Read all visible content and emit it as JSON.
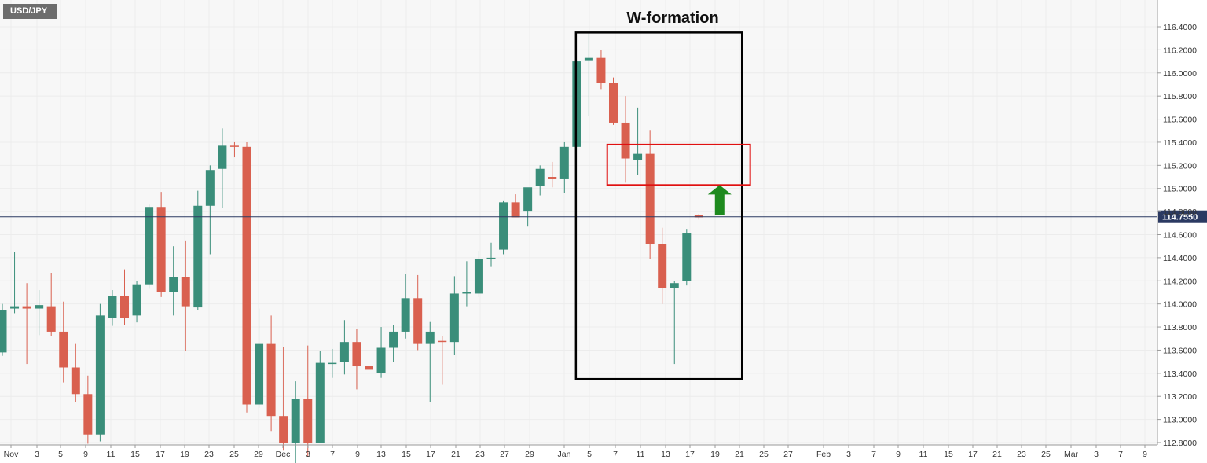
{
  "symbol": "USD/JPY",
  "colors": {
    "background": "#ffffff",
    "grid": "#ececec",
    "up": "#3a8e7a",
    "down": "#d9604f",
    "current_price_line": "#2b3a62",
    "price_tag": "#2b3a62",
    "axis_text": "#333333",
    "pattern_box": "#000000",
    "resistance_box": "#e01010",
    "arrow": "#1e8a1e"
  },
  "chart_data": {
    "type": "candlestick",
    "title": "",
    "ylim": [
      112.8,
      116.5
    ],
    "y_ticks": [
      "116.4000",
      "116.2000",
      "116.0000",
      "115.8000",
      "115.6000",
      "115.4000",
      "115.2000",
      "115.0000",
      "114.8000",
      "114.6000",
      "114.4000",
      "114.2000",
      "114.0000",
      "113.8000",
      "113.6000",
      "113.4000",
      "113.2000",
      "113.0000",
      "112.8000"
    ],
    "x_ticks": [
      "Nov",
      "3",
      "5",
      "9",
      "11",
      "15",
      "17",
      "19",
      "23",
      "25",
      "29",
      "Dec",
      "3",
      "7",
      "9",
      "13",
      "15",
      "17",
      "21",
      "23",
      "27",
      "29",
      "Jan",
      "5",
      "7",
      "11",
      "13",
      "17",
      "19",
      "21",
      "25",
      "27",
      "Feb",
      "3",
      "7",
      "9",
      "11",
      "15",
      "17",
      "21",
      "23",
      "25",
      "Mar",
      "3",
      "7",
      "9"
    ],
    "current_price": 114.755,
    "current_price_label": "114.7550",
    "candles": [
      {
        "o": 113.58,
        "h": 114.0,
        "l": 113.55,
        "c": 113.95
      },
      {
        "o": 113.96,
        "h": 114.45,
        "l": 113.92,
        "c": 113.98
      },
      {
        "o": 113.98,
        "h": 114.18,
        "l": 113.48,
        "c": 113.96
      },
      {
        "o": 113.96,
        "h": 114.12,
        "l": 113.73,
        "c": 113.99
      },
      {
        "o": 113.98,
        "h": 114.27,
        "l": 113.72,
        "c": 113.76
      },
      {
        "o": 113.76,
        "h": 114.02,
        "l": 113.32,
        "c": 113.45
      },
      {
        "o": 113.45,
        "h": 113.66,
        "l": 113.15,
        "c": 113.22
      },
      {
        "o": 113.22,
        "h": 113.38,
        "l": 112.79,
        "c": 112.87
      },
      {
        "o": 112.87,
        "h": 114.0,
        "l": 112.81,
        "c": 113.9
      },
      {
        "o": 113.88,
        "h": 114.12,
        "l": 113.81,
        "c": 114.07
      },
      {
        "o": 114.07,
        "h": 114.3,
        "l": 113.82,
        "c": 113.88
      },
      {
        "o": 113.9,
        "h": 114.2,
        "l": 113.84,
        "c": 114.17
      },
      {
        "o": 114.17,
        "h": 114.86,
        "l": 114.13,
        "c": 114.84
      },
      {
        "o": 114.84,
        "h": 114.97,
        "l": 114.06,
        "c": 114.1
      },
      {
        "o": 114.1,
        "h": 114.5,
        "l": 113.9,
        "c": 114.23
      },
      {
        "o": 114.23,
        "h": 114.55,
        "l": 113.59,
        "c": 113.98
      },
      {
        "o": 113.97,
        "h": 114.98,
        "l": 113.95,
        "c": 114.85
      },
      {
        "o": 114.85,
        "h": 115.2,
        "l": 114.43,
        "c": 115.16
      },
      {
        "o": 115.17,
        "h": 115.52,
        "l": 114.83,
        "c": 115.37
      },
      {
        "o": 115.37,
        "h": 115.4,
        "l": 115.27,
        "c": 115.36
      },
      {
        "o": 115.36,
        "h": 115.4,
        "l": 113.06,
        "c": 113.13
      },
      {
        "o": 113.13,
        "h": 113.96,
        "l": 113.1,
        "c": 113.66
      },
      {
        "o": 113.66,
        "h": 113.9,
        "l": 112.9,
        "c": 113.03
      },
      {
        "o": 113.03,
        "h": 113.63,
        "l": 112.73,
        "c": 112.8
      },
      {
        "o": 112.8,
        "h": 113.33,
        "l": 112.56,
        "c": 113.18
      },
      {
        "o": 113.18,
        "h": 113.64,
        "l": 112.68,
        "c": 112.8
      },
      {
        "o": 112.8,
        "h": 113.59,
        "l": 112.8,
        "c": 113.49
      },
      {
        "o": 113.48,
        "h": 113.61,
        "l": 113.36,
        "c": 113.49
      },
      {
        "o": 113.5,
        "h": 113.86,
        "l": 113.39,
        "c": 113.67
      },
      {
        "o": 113.67,
        "h": 113.78,
        "l": 113.26,
        "c": 113.46
      },
      {
        "o": 113.46,
        "h": 113.62,
        "l": 113.23,
        "c": 113.43
      },
      {
        "o": 113.4,
        "h": 113.8,
        "l": 113.36,
        "c": 113.62
      },
      {
        "o": 113.62,
        "h": 113.82,
        "l": 113.5,
        "c": 113.76
      },
      {
        "o": 113.76,
        "h": 114.26,
        "l": 113.7,
        "c": 114.05
      },
      {
        "o": 114.05,
        "h": 114.25,
        "l": 113.6,
        "c": 113.66
      },
      {
        "o": 113.66,
        "h": 113.85,
        "l": 113.15,
        "c": 113.76
      },
      {
        "o": 113.68,
        "h": 113.72,
        "l": 113.3,
        "c": 113.67
      },
      {
        "o": 113.67,
        "h": 114.24,
        "l": 113.56,
        "c": 114.09
      },
      {
        "o": 114.09,
        "h": 114.37,
        "l": 113.98,
        "c": 114.1
      },
      {
        "o": 114.09,
        "h": 114.46,
        "l": 114.06,
        "c": 114.39
      },
      {
        "o": 114.39,
        "h": 114.53,
        "l": 114.32,
        "c": 114.4
      },
      {
        "o": 114.47,
        "h": 114.89,
        "l": 114.43,
        "c": 114.88
      },
      {
        "o": 114.88,
        "h": 114.95,
        "l": 114.75,
        "c": 114.75
      },
      {
        "o": 114.8,
        "h": 115.0,
        "l": 114.67,
        "c": 115.01
      },
      {
        "o": 115.02,
        "h": 115.2,
        "l": 114.94,
        "c": 115.17
      },
      {
        "o": 115.1,
        "h": 115.23,
        "l": 115.01,
        "c": 115.08
      },
      {
        "o": 115.08,
        "h": 115.4,
        "l": 114.96,
        "c": 115.36
      },
      {
        "o": 115.36,
        "h": 116.08,
        "l": 115.36,
        "c": 116.1
      },
      {
        "o": 116.11,
        "h": 116.35,
        "l": 115.63,
        "c": 116.13
      },
      {
        "o": 116.13,
        "h": 116.2,
        "l": 115.86,
        "c": 115.91
      },
      {
        "o": 115.91,
        "h": 115.96,
        "l": 115.55,
        "c": 115.57
      },
      {
        "o": 115.57,
        "h": 115.8,
        "l": 115.05,
        "c": 115.26
      },
      {
        "o": 115.25,
        "h": 115.7,
        "l": 115.12,
        "c": 115.3
      },
      {
        "o": 115.3,
        "h": 115.5,
        "l": 114.39,
        "c": 114.52
      },
      {
        "o": 114.52,
        "h": 114.66,
        "l": 114.0,
        "c": 114.14
      },
      {
        "o": 114.14,
        "h": 114.2,
        "l": 113.48,
        "c": 114.18
      },
      {
        "o": 114.2,
        "h": 114.65,
        "l": 114.16,
        "c": 114.61
      },
      {
        "o": 114.77,
        "h": 114.78,
        "l": 114.73,
        "c": 114.75
      }
    ]
  },
  "annotations": {
    "pattern_label": "W-formation",
    "pattern_box": {
      "from_candle": 47,
      "to_candle": 59.5,
      "price_top": 116.35,
      "price_bottom": 113.35
    },
    "resistance_box": {
      "from_candle": 49.5,
      "to_candle": 61.2,
      "price_top": 115.38,
      "price_bottom": 115.03
    },
    "arrow": {
      "at_candle": 58.7,
      "from_price": 114.77,
      "to_price": 115.03
    }
  }
}
